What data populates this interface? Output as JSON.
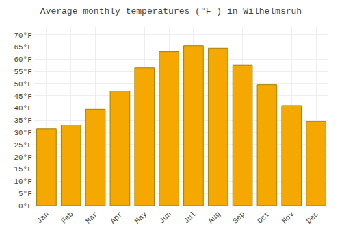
{
  "chart_data": {
    "type": "bar",
    "title": "Average monthly temperatures (°F ) in Wilhelmsruh",
    "categories": [
      "Jan",
      "Feb",
      "Mar",
      "Apr",
      "May",
      "Jun",
      "Jul",
      "Aug",
      "Sep",
      "Oct",
      "Nov",
      "Dec"
    ],
    "values": [
      31.5,
      33.0,
      39.5,
      47.0,
      56.5,
      63.0,
      65.5,
      64.5,
      57.5,
      49.5,
      41.0,
      34.5
    ],
    "color": "#F5A800",
    "ylim": [
      0,
      73
    ],
    "yticks": [
      {
        "value": 0,
        "label": "0°F"
      },
      {
        "value": 5,
        "label": "5°F"
      },
      {
        "value": 10,
        "label": "10°F"
      },
      {
        "value": 15,
        "label": "15°F"
      },
      {
        "value": 20,
        "label": "20°F"
      },
      {
        "value": 25,
        "label": "25°F"
      },
      {
        "value": 30,
        "label": "30°F"
      },
      {
        "value": 35,
        "label": "35°F"
      },
      {
        "value": 40,
        "label": "40°F"
      },
      {
        "value": 45,
        "label": "45°F"
      },
      {
        "value": 50,
        "label": "50°F"
      },
      {
        "value": 55,
        "label": "55°F"
      },
      {
        "value": 60,
        "label": "60°F"
      },
      {
        "value": 65,
        "label": "65°F"
      },
      {
        "value": 70,
        "label": "70°F"
      }
    ],
    "grid": true
  }
}
